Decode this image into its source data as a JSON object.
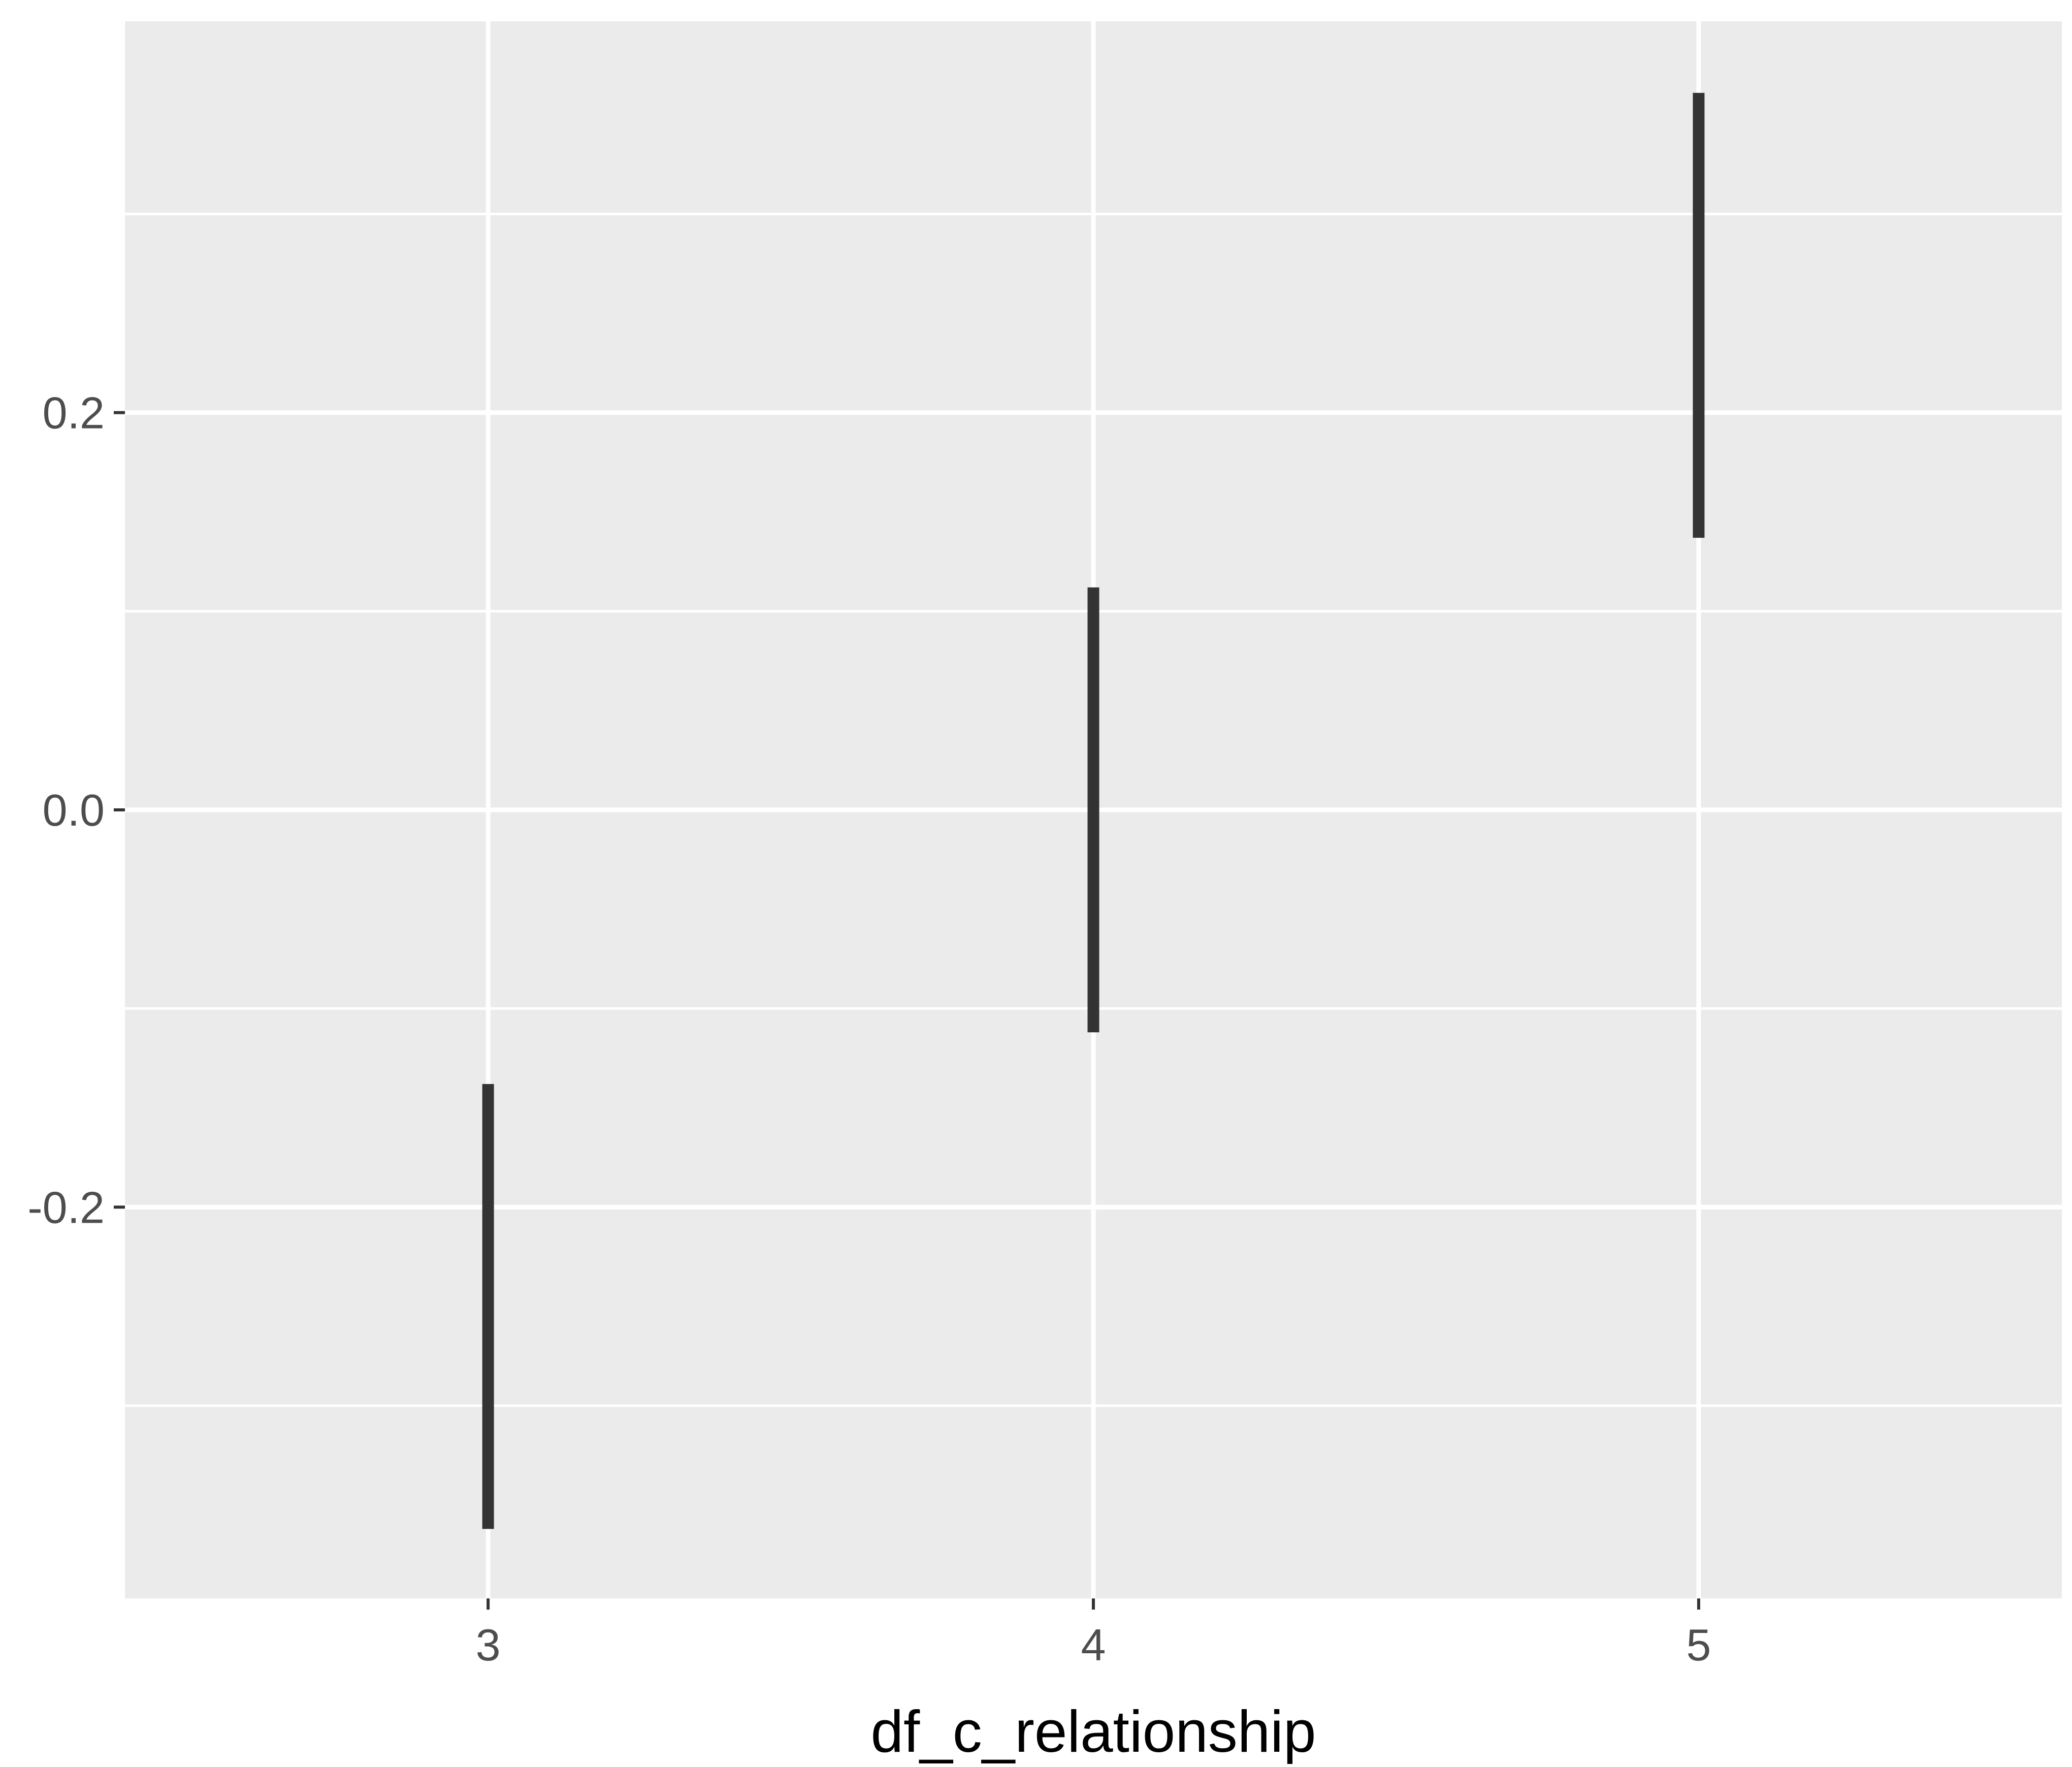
{
  "chart_data": {
    "type": "errorbar",
    "title": "",
    "xlabel": "df_c_relationship",
    "ylabel": "",
    "x": [
      3,
      4,
      5
    ],
    "x_ticks": [
      3,
      4,
      5
    ],
    "x_tick_labels": [
      "3",
      "4",
      "5"
    ],
    "xlim": [
      2.4,
      5.6
    ],
    "y_ticks": [
      -0.2,
      0.0,
      0.2
    ],
    "y_tick_labels": [
      "-0.2",
      "0.0",
      "0.2"
    ],
    "ylim": [
      -0.397,
      0.397
    ],
    "intervals": [
      {
        "x": 3,
        "low": -0.362,
        "high": -0.138
      },
      {
        "x": 4,
        "low": -0.112,
        "high": 0.112
      },
      {
        "x": 5,
        "low": 0.137,
        "high": 0.361
      }
    ],
    "grid": true,
    "legend": "none",
    "colors": {
      "panel_background": "#ebebeb",
      "grid_major": "#ffffff",
      "grid_minor": "#ffffff",
      "bar": "#333333",
      "tick_mark": "#333333"
    }
  }
}
